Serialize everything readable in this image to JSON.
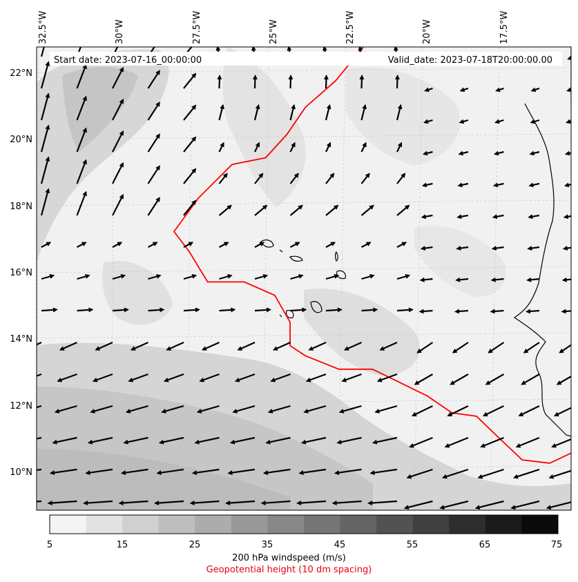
{
  "map": {
    "start_date": "Start date: 2023-07-16_00:00:00",
    "valid_date": "Valid_date: 2023-07-18T20:00:00.00",
    "lon_labels": [
      "32.5°W",
      "30°W",
      "27.5°W",
      "25°W",
      "22.5°W",
      "20°W",
      "17.5°W"
    ],
    "lat_labels": [
      "22°N",
      "20°N",
      "18°N",
      "16°N",
      "14°N",
      "12°N",
      "10°N"
    ],
    "extent": {
      "lon_min": -33.0,
      "lon_max": -15.5,
      "lat_min": 9.0,
      "lat_max": 22.8
    },
    "geopotential_contour_color": "#ff0000",
    "geopotential_contour": [
      [
        -22.3,
        22.8
      ],
      [
        -23.2,
        21.8
      ],
      [
        -24.2,
        21.0
      ],
      [
        -24.8,
        20.2
      ],
      [
        -25.5,
        19.5
      ],
      [
        -26.6,
        19.3
      ],
      [
        -27.7,
        18.3
      ],
      [
        -28.5,
        17.3
      ],
      [
        -28.0,
        16.7
      ],
      [
        -27.4,
        15.8
      ],
      [
        -26.2,
        15.8
      ],
      [
        -25.2,
        15.4
      ],
      [
        -24.7,
        14.6
      ],
      [
        -24.7,
        13.9
      ],
      [
        -24.2,
        13.6
      ],
      [
        -23.1,
        13.2
      ],
      [
        -22.0,
        13.2
      ],
      [
        -21.1,
        12.8
      ],
      [
        -20.2,
        12.4
      ],
      [
        -19.4,
        11.9
      ],
      [
        -18.6,
        11.8
      ],
      [
        -17.8,
        11.1
      ],
      [
        -17.1,
        10.5
      ],
      [
        -16.2,
        10.4
      ],
      [
        -15.5,
        10.7
      ]
    ]
  },
  "colorbar": {
    "ticks": [
      "5",
      "15",
      "25",
      "35",
      "45",
      "55",
      "65",
      "75"
    ],
    "bins": [
      5,
      10,
      15,
      20,
      25,
      30,
      35,
      40,
      45,
      50,
      55,
      60,
      65,
      70,
      75
    ],
    "colors": [
      "#f4f4f4",
      "#e2e2e2",
      "#d0d0d0",
      "#bebebe",
      "#acacac",
      "#999999",
      "#888888",
      "#757575",
      "#646464",
      "#525252",
      "#404040",
      "#2d2d2d",
      "#1b1b1b",
      "#0a0a0a"
    ],
    "label": "200 hPa windspeed (m/s)",
    "sublabel": "Geopotential height (10 dm spacing)",
    "sublabel_color": "#e8000b"
  }
}
